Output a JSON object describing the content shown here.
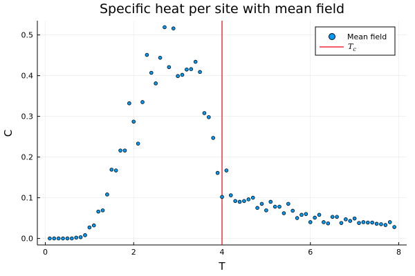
{
  "chart_data": {
    "type": "scatter",
    "title": "Specific heat per site with mean field",
    "xlabel": "T",
    "ylabel": "C",
    "xlim": [
      -0.18,
      8.18
    ],
    "ylim": [
      -0.016,
      0.535
    ],
    "xticks": [
      0,
      2,
      4,
      6,
      8
    ],
    "yticks": [
      0.0,
      0.1,
      0.2,
      0.3,
      0.4,
      0.5
    ],
    "ytick_labels": [
      "0.0",
      "0.1",
      "0.2",
      "0.3",
      "0.4",
      "0.5"
    ],
    "xtick_labels": [
      "0",
      "2",
      "4",
      "6",
      "8"
    ],
    "grid": true,
    "legend_position": "top-right",
    "series": [
      {
        "name": "Mean field",
        "color": "#009AFA",
        "x": [
          0.1,
          0.2,
          0.3,
          0.4,
          0.5,
          0.6,
          0.7,
          0.8,
          0.9,
          1.0,
          1.1,
          1.2,
          1.3,
          1.4,
          1.5,
          1.6,
          1.7,
          1.8,
          1.9,
          2.0,
          2.1,
          2.2,
          2.3,
          2.4,
          2.5,
          2.6,
          2.7,
          2.8,
          2.9,
          3.0,
          3.1,
          3.2,
          3.3,
          3.4,
          3.5,
          3.6,
          3.7,
          3.8,
          3.9,
          4.0,
          4.1,
          4.2,
          4.3,
          4.4,
          4.5,
          4.6,
          4.7,
          4.8,
          4.9,
          5.0,
          5.1,
          5.2,
          5.3,
          5.4,
          5.5,
          5.6,
          5.7,
          5.8,
          5.9,
          6.0,
          6.1,
          6.2,
          6.3,
          6.4,
          6.5,
          6.6,
          6.7,
          6.8,
          6.9,
          7.0,
          7.1,
          7.2,
          7.3,
          7.4,
          7.5,
          7.6,
          7.7,
          7.8,
          7.9
        ],
        "y": [
          0.0,
          0.0,
          0.0,
          0.0,
          0.0,
          0.0,
          0.002,
          0.003,
          0.008,
          0.027,
          0.032,
          0.066,
          0.069,
          0.108,
          0.169,
          0.167,
          0.216,
          0.216,
          0.332,
          0.287,
          0.233,
          0.335,
          0.451,
          0.407,
          0.381,
          0.444,
          0.519,
          0.421,
          0.516,
          0.399,
          0.402,
          0.415,
          0.416,
          0.434,
          0.409,
          0.308,
          0.298,
          0.247,
          0.161,
          0.102,
          0.167,
          0.106,
          0.092,
          0.09,
          0.092,
          0.096,
          0.1,
          0.075,
          0.085,
          0.069,
          0.09,
          0.078,
          0.078,
          0.062,
          0.085,
          0.068,
          0.05,
          0.058,
          0.06,
          0.04,
          0.051,
          0.058,
          0.04,
          0.037,
          0.053,
          0.053,
          0.038,
          0.047,
          0.043,
          0.049,
          0.038,
          0.04,
          0.039,
          0.039,
          0.036,
          0.035,
          0.033,
          0.04,
          0.028
        ]
      }
    ],
    "vline": {
      "name": "T_c",
      "x": 4.0,
      "color": "#E6000A"
    }
  },
  "legend": {
    "series_label": "Mean field",
    "vline_label_main": "T",
    "vline_label_sub": "c"
  }
}
